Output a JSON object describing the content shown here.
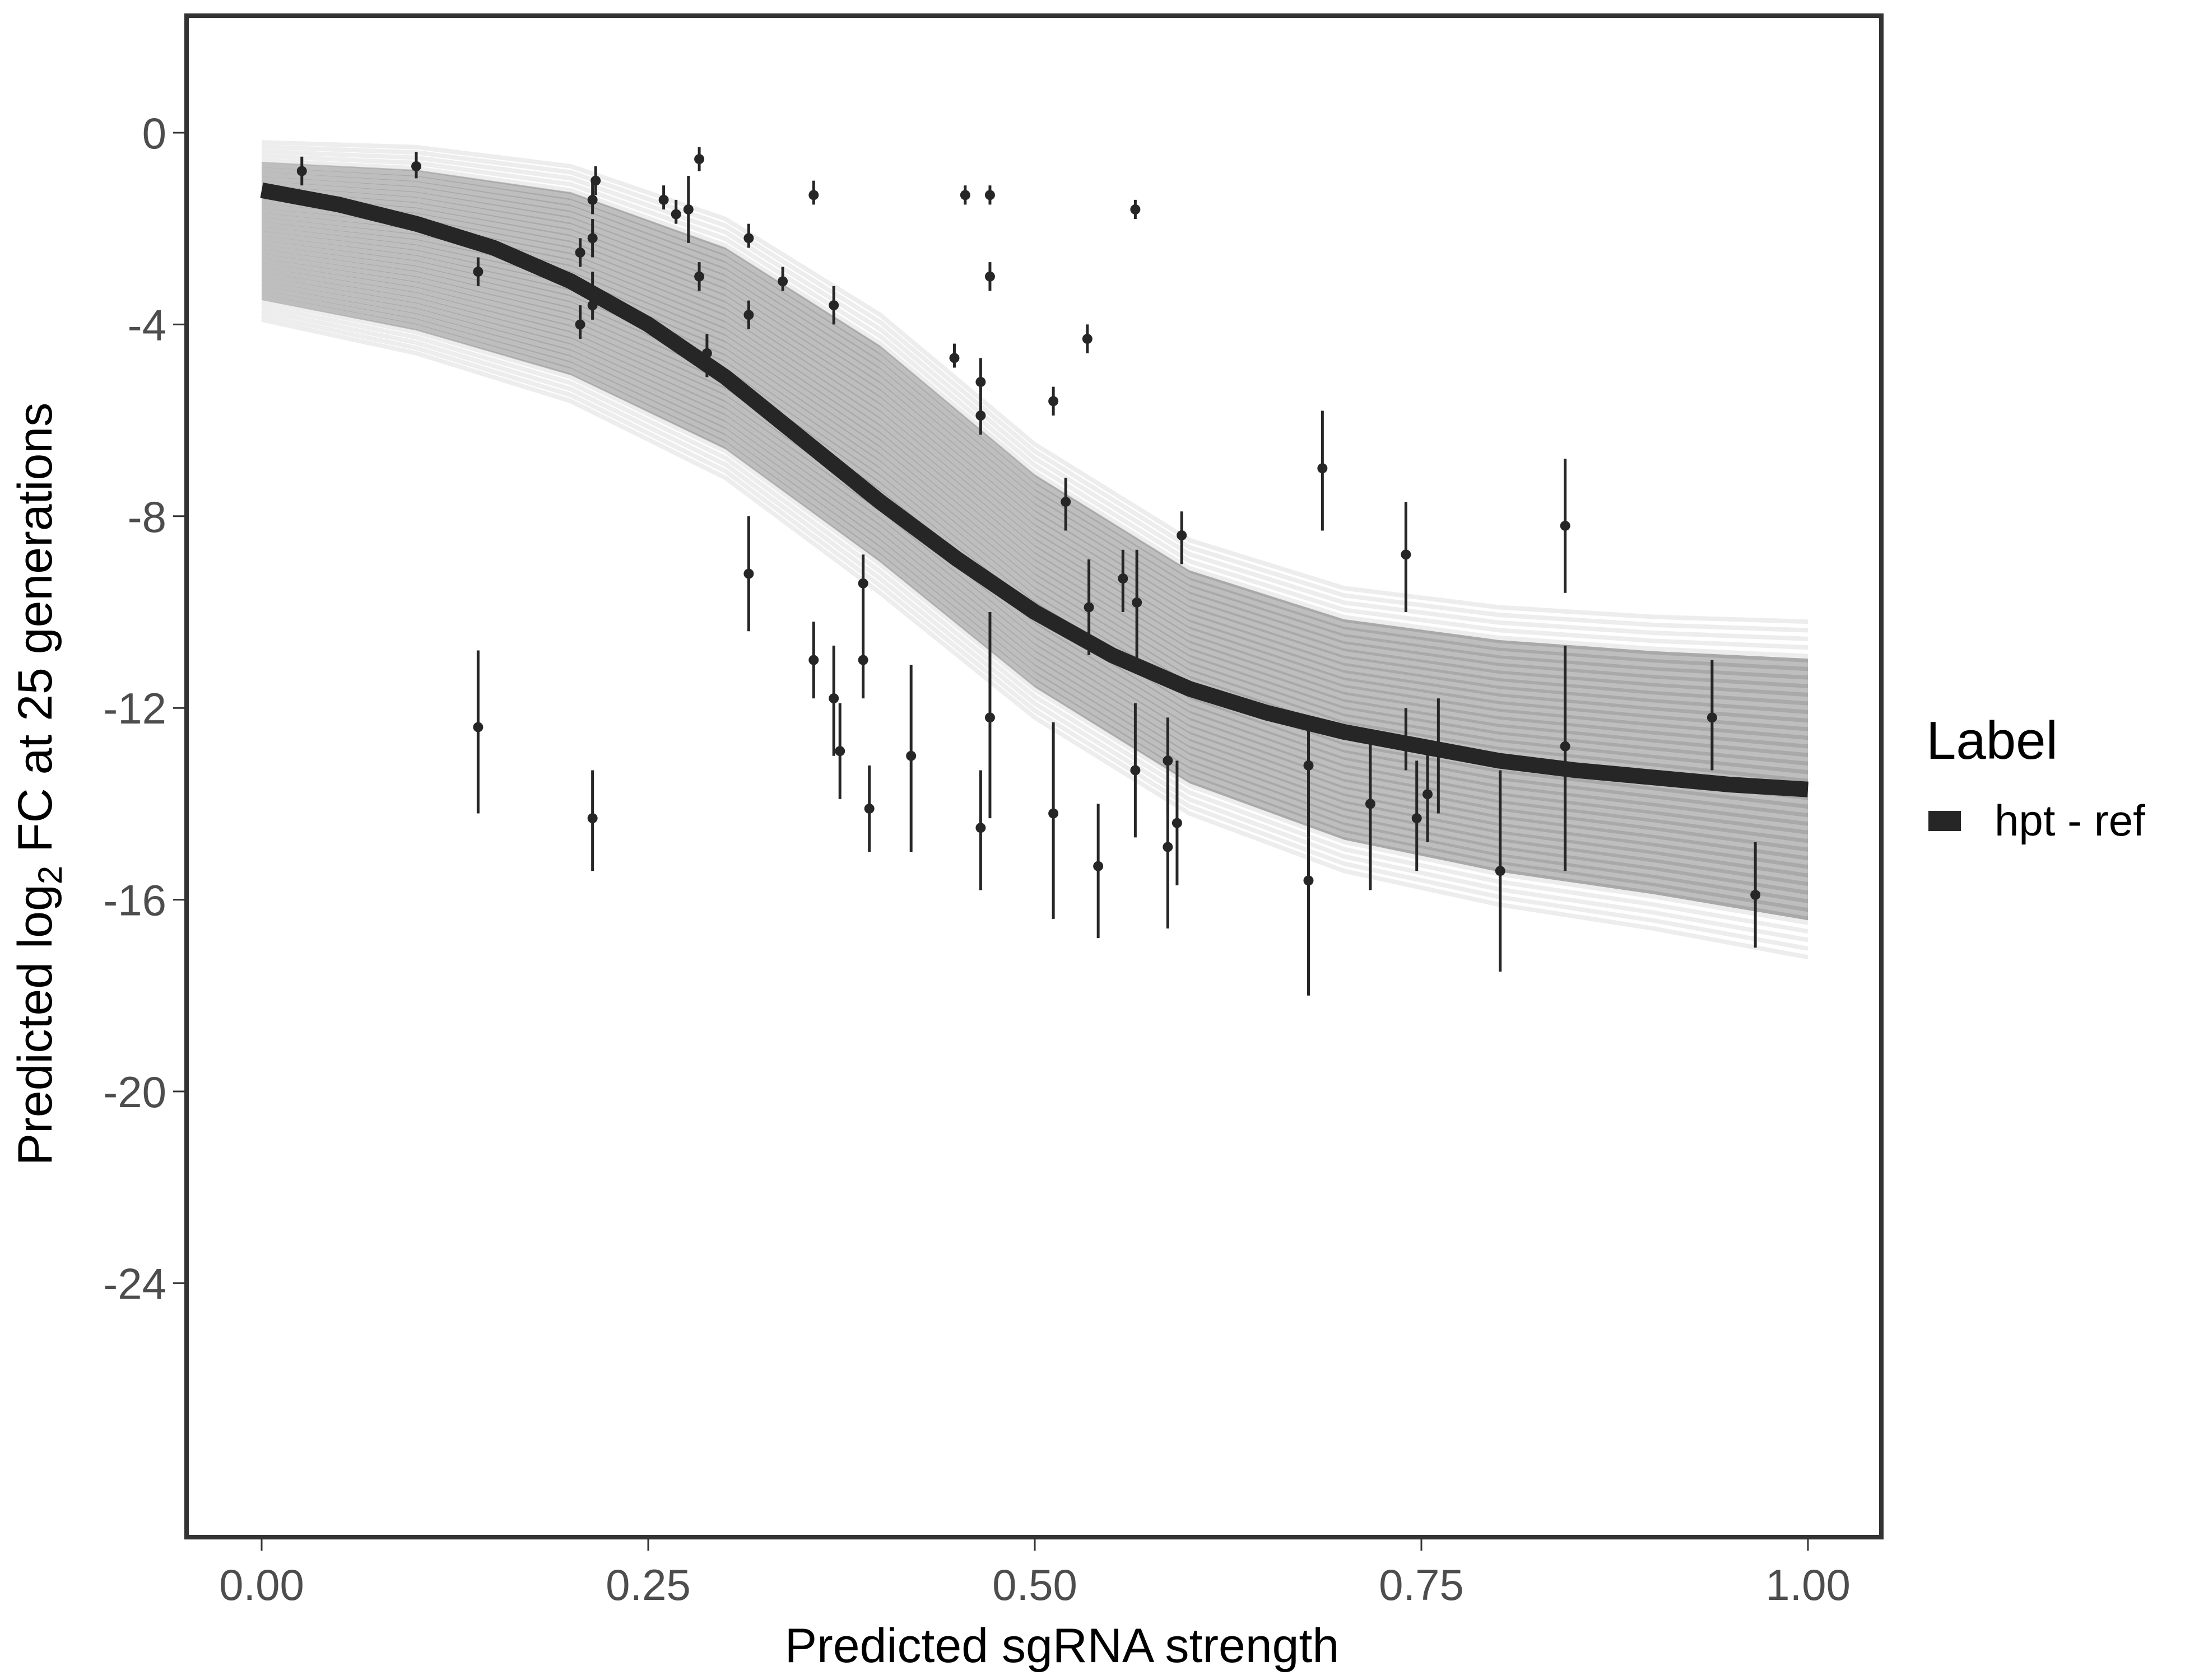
{
  "chart_data": {
    "type": "scatter",
    "title": "",
    "xlabel": "Predicted sgRNA strength",
    "ylabel_prefix": "Predicted  log",
    "ylabel_subscript": "2",
    "ylabel_suffix": " FC at 25 generations",
    "xlim": [
      -0.05,
      1.05
    ],
    "ylim": [
      -29.4,
      2.4
    ],
    "x_ticks": [
      0.0,
      0.25,
      0.5,
      0.75,
      1.0
    ],
    "x_tick_labels": [
      "0.00",
      "0.25",
      "0.50",
      "0.75",
      "1.00"
    ],
    "y_ticks": [
      0,
      -4,
      -8,
      -12,
      -16,
      -20,
      -24
    ],
    "y_tick_labels": [
      "0",
      "-4",
      "-8",
      "-12",
      "-16",
      "-20",
      "-24"
    ],
    "grid": false,
    "legend": {
      "title": "Label",
      "placement": "right",
      "entries": [
        {
          "label": "hpt - ref",
          "color": "#262626"
        }
      ]
    },
    "colors": {
      "fit_line": "#262626",
      "posterior_draws": "#a9a9a9",
      "points": "#262626",
      "panel_border": "#333333"
    },
    "fit_curve": {
      "name": "hpt - ref",
      "x": [
        0.0,
        0.05,
        0.1,
        0.15,
        0.2,
        0.25,
        0.3,
        0.35,
        0.4,
        0.45,
        0.5,
        0.55,
        0.6,
        0.65,
        0.7,
        0.75,
        0.8,
        0.85,
        0.9,
        0.95,
        1.0
      ],
      "y": [
        -1.2,
        -1.5,
        -1.9,
        -2.4,
        -3.1,
        -4.0,
        -5.1,
        -6.4,
        -7.7,
        -8.9,
        -10.0,
        -10.9,
        -11.6,
        -12.1,
        -12.5,
        -12.8,
        -13.1,
        -13.3,
        -13.45,
        -13.6,
        -13.7
      ]
    },
    "posterior_band": {
      "x": [
        0.0,
        0.1,
        0.2,
        0.3,
        0.4,
        0.5,
        0.6,
        0.7,
        0.8,
        0.9,
        1.0
      ],
      "upper": [
        -0.2,
        -0.3,
        -0.7,
        -1.8,
        -3.8,
        -6.5,
        -8.5,
        -9.5,
        -9.9,
        -10.1,
        -10.2
      ],
      "lower": [
        -3.9,
        -4.6,
        -5.6,
        -7.2,
        -9.6,
        -12.2,
        -14.2,
        -15.4,
        -16.1,
        -16.6,
        -17.2
      ]
    },
    "points": [
      {
        "x": 0.026,
        "y": -0.8,
        "ymin": -1.1,
        "ymax": -0.5
      },
      {
        "x": 0.1,
        "y": -0.7,
        "ymin": -0.95,
        "ymax": -0.4
      },
      {
        "x": 0.14,
        "y": -2.9,
        "ymin": -3.2,
        "ymax": -2.6
      },
      {
        "x": 0.14,
        "y": -12.4,
        "ymin": -14.2,
        "ymax": -10.8
      },
      {
        "x": 0.206,
        "y": -2.5,
        "ymin": -2.8,
        "ymax": -2.2
      },
      {
        "x": 0.206,
        "y": -4.0,
        "ymin": -4.3,
        "ymax": -3.6
      },
      {
        "x": 0.214,
        "y": -1.4,
        "ymin": -1.7,
        "ymax": -1.0
      },
      {
        "x": 0.214,
        "y": -2.2,
        "ymin": -2.6,
        "ymax": -1.8
      },
      {
        "x": 0.214,
        "y": -3.3,
        "ymin": -3.7,
        "ymax": -2.9
      },
      {
        "x": 0.214,
        "y": -3.6,
        "ymin": -3.9,
        "ymax": -3.3
      },
      {
        "x": 0.216,
        "y": -1.0,
        "ymin": -1.3,
        "ymax": -0.7
      },
      {
        "x": 0.214,
        "y": -14.3,
        "ymin": -15.4,
        "ymax": -13.3
      },
      {
        "x": 0.26,
        "y": -1.4,
        "ymin": -1.6,
        "ymax": -1.1
      },
      {
        "x": 0.268,
        "y": -1.7,
        "ymin": -1.9,
        "ymax": -1.4
      },
      {
        "x": 0.276,
        "y": -1.6,
        "ymin": -2.3,
        "ymax": -0.9
      },
      {
        "x": 0.283,
        "y": -0.55,
        "ymin": -0.8,
        "ymax": -0.3
      },
      {
        "x": 0.283,
        "y": -3.0,
        "ymin": -3.3,
        "ymax": -2.7
      },
      {
        "x": 0.288,
        "y": -4.6,
        "ymin": -5.1,
        "ymax": -4.2
      },
      {
        "x": 0.315,
        "y": -2.2,
        "ymin": -2.4,
        "ymax": -1.9
      },
      {
        "x": 0.315,
        "y": -3.8,
        "ymin": -4.1,
        "ymax": -3.5
      },
      {
        "x": 0.315,
        "y": -9.2,
        "ymin": -10.4,
        "ymax": -8.0
      },
      {
        "x": 0.337,
        "y": -3.1,
        "ymin": -3.3,
        "ymax": -2.8
      },
      {
        "x": 0.357,
        "y": -1.3,
        "ymin": -1.5,
        "ymax": -1.0
      },
      {
        "x": 0.357,
        "y": -11.0,
        "ymin": -11.8,
        "ymax": -10.2
      },
      {
        "x": 0.37,
        "y": -3.6,
        "ymin": -4.0,
        "ymax": -3.2
      },
      {
        "x": 0.37,
        "y": -11.8,
        "ymin": -13.0,
        "ymax": -10.7
      },
      {
        "x": 0.374,
        "y": -12.9,
        "ymin": -13.9,
        "ymax": -11.9
      },
      {
        "x": 0.389,
        "y": -9.4,
        "ymin": -10.1,
        "ymax": -8.8
      },
      {
        "x": 0.389,
        "y": -11.0,
        "ymin": -11.8,
        "ymax": -10.1
      },
      {
        "x": 0.393,
        "y": -14.1,
        "ymin": -15.0,
        "ymax": -13.2
      },
      {
        "x": 0.42,
        "y": -13.0,
        "ymin": -15.0,
        "ymax": -11.1
      },
      {
        "x": 0.448,
        "y": -4.7,
        "ymin": -4.9,
        "ymax": -4.4
      },
      {
        "x": 0.455,
        "y": -1.3,
        "ymin": -1.5,
        "ymax": -1.1
      },
      {
        "x": 0.465,
        "y": -5.2,
        "ymin": -5.6,
        "ymax": -4.7
      },
      {
        "x": 0.465,
        "y": -5.9,
        "ymin": -6.3,
        "ymax": -5.6
      },
      {
        "x": 0.465,
        "y": -14.5,
        "ymin": -15.8,
        "ymax": -13.3
      },
      {
        "x": 0.471,
        "y": -1.3,
        "ymin": -1.5,
        "ymax": -1.1
      },
      {
        "x": 0.471,
        "y": -3.0,
        "ymin": -3.3,
        "ymax": -2.7
      },
      {
        "x": 0.471,
        "y": -12.2,
        "ymin": -14.3,
        "ymax": -10.0
      },
      {
        "x": 0.512,
        "y": -5.6,
        "ymin": -5.9,
        "ymax": -5.3
      },
      {
        "x": 0.512,
        "y": -14.2,
        "ymin": -16.4,
        "ymax": -12.3
      },
      {
        "x": 0.52,
        "y": -7.7,
        "ymin": -8.3,
        "ymax": -7.2
      },
      {
        "x": 0.534,
        "y": -4.3,
        "ymin": -4.6,
        "ymax": -4.0
      },
      {
        "x": 0.535,
        "y": -9.9,
        "ymin": -10.9,
        "ymax": -8.9
      },
      {
        "x": 0.541,
        "y": -15.3,
        "ymin": -16.8,
        "ymax": -14.0
      },
      {
        "x": 0.557,
        "y": -9.3,
        "ymin": -10.0,
        "ymax": -8.7
      },
      {
        "x": 0.565,
        "y": -1.6,
        "ymin": -1.8,
        "ymax": -1.4
      },
      {
        "x": 0.566,
        "y": -9.8,
        "ymin": -11.0,
        "ymax": -8.7
      },
      {
        "x": 0.565,
        "y": -13.3,
        "ymin": -14.7,
        "ymax": -11.9
      },
      {
        "x": 0.586,
        "y": -13.1,
        "ymin": -14.2,
        "ymax": -12.2
      },
      {
        "x": 0.586,
        "y": -14.9,
        "ymin": -16.6,
        "ymax": -13.6
      },
      {
        "x": 0.592,
        "y": -14.4,
        "ymin": -15.7,
        "ymax": -13.1
      },
      {
        "x": 0.595,
        "y": -8.4,
        "ymin": -9.0,
        "ymax": -7.9
      },
      {
        "x": 0.677,
        "y": -13.2,
        "ymin": -14.7,
        "ymax": -12.4
      },
      {
        "x": 0.677,
        "y": -15.6,
        "ymin": -18.0,
        "ymax": -14.7
      },
      {
        "x": 0.686,
        "y": -7.0,
        "ymin": -8.3,
        "ymax": -5.8
      },
      {
        "x": 0.717,
        "y": -14.0,
        "ymin": -15.8,
        "ymax": -12.6
      },
      {
        "x": 0.74,
        "y": -8.8,
        "ymin": -10.0,
        "ymax": -7.7
      },
      {
        "x": 0.74,
        "y": -12.8,
        "ymin": -13.3,
        "ymax": -12.0
      },
      {
        "x": 0.747,
        "y": -14.3,
        "ymin": -15.4,
        "ymax": -13.1
      },
      {
        "x": 0.754,
        "y": -13.8,
        "ymin": -14.8,
        "ymax": -12.9
      },
      {
        "x": 0.761,
        "y": -12.9,
        "ymin": -14.2,
        "ymax": -11.8
      },
      {
        "x": 0.801,
        "y": -15.4,
        "ymin": -17.5,
        "ymax": -13.3
      },
      {
        "x": 0.843,
        "y": -8.2,
        "ymin": -9.6,
        "ymax": -6.8
      },
      {
        "x": 0.843,
        "y": -12.8,
        "ymin": -15.4,
        "ymax": -10.7
      },
      {
        "x": 0.938,
        "y": -12.2,
        "ymin": -13.3,
        "ymax": -11.0
      },
      {
        "x": 0.966,
        "y": -15.9,
        "ymin": -17.0,
        "ymax": -14.8
      }
    ]
  }
}
